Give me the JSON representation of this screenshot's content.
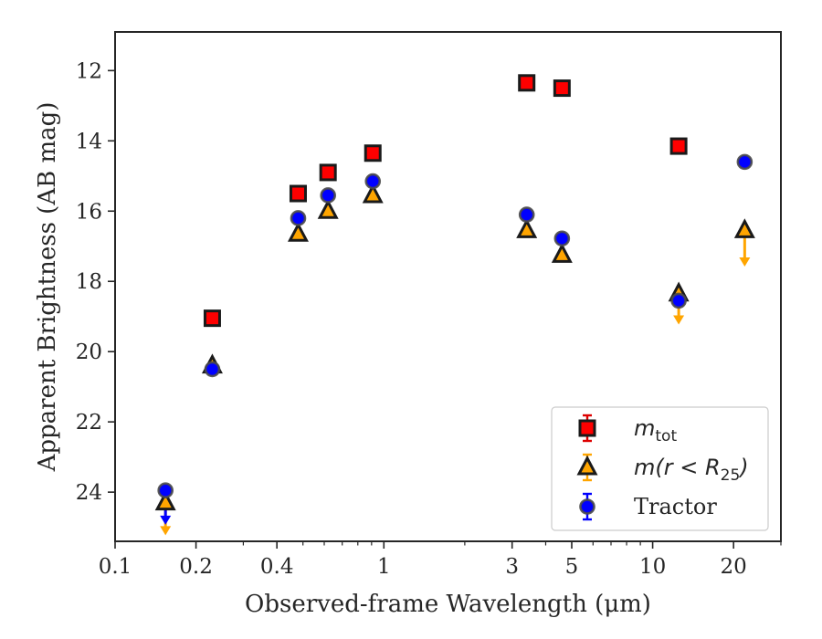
{
  "chart_data": {
    "type": "scatter",
    "xlabel": "Observed-frame Wavelength (μm)",
    "ylabel": "Apparent Brightness (AB mag)",
    "x_scale": "log",
    "xlim": [
      0.1,
      30
    ],
    "ylim": [
      25.4,
      10.9
    ],
    "y_inverted": true,
    "x_ticks": [
      {
        "value": 0.1,
        "label": "0.1"
      },
      {
        "value": 0.2,
        "label": "0.2"
      },
      {
        "value": 0.4,
        "label": "0.4"
      },
      {
        "value": 1,
        "label": "1"
      },
      {
        "value": 3,
        "label": "3"
      },
      {
        "value": 5,
        "label": "5"
      },
      {
        "value": 10,
        "label": "10"
      },
      {
        "value": 20,
        "label": "20"
      }
    ],
    "x_minor_ticks": [
      0.3,
      0.5,
      0.6,
      0.7,
      0.8,
      0.9,
      2,
      4,
      6,
      7,
      8,
      9,
      30
    ],
    "y_ticks": [
      {
        "value": 12,
        "label": "12"
      },
      {
        "value": 14,
        "label": "14"
      },
      {
        "value": 16,
        "label": "16"
      },
      {
        "value": 18,
        "label": "18"
      },
      {
        "value": 20,
        "label": "20"
      },
      {
        "value": 22,
        "label": "22"
      },
      {
        "value": 24,
        "label": "24"
      }
    ],
    "grid": false,
    "legend_position": "lower-right",
    "series": [
      {
        "name": "m_tot",
        "legend_label": {
          "base": "m",
          "sub": "tot"
        },
        "marker": "square",
        "face_color": "#ff0000",
        "edge_color": "#1a1a1a",
        "errorbar_color": "#dd0000",
        "points": [
          {
            "x": 0.23,
            "y": 19.05
          },
          {
            "x": 0.48,
            "y": 15.5
          },
          {
            "x": 0.62,
            "y": 14.9
          },
          {
            "x": 0.91,
            "y": 14.35
          },
          {
            "x": 3.4,
            "y": 12.35
          },
          {
            "x": 4.6,
            "y": 12.5
          },
          {
            "x": 12.5,
            "y": 14.15
          }
        ]
      },
      {
        "name": "m(r < R25)",
        "legend_label": {
          "base": "m(r < R",
          "sub": "25",
          "tail": ")"
        },
        "marker": "triangle",
        "face_color": "#ffa500",
        "edge_color": "#1a1a1a",
        "errorbar_color": "#ffa500",
        "points": [
          {
            "x": 0.154,
            "y": 24.3,
            "upper_limit": true,
            "limit_to": 25.15
          },
          {
            "x": 0.23,
            "y": 20.4
          },
          {
            "x": 0.48,
            "y": 16.65
          },
          {
            "x": 0.62,
            "y": 16.0
          },
          {
            "x": 0.91,
            "y": 15.55
          },
          {
            "x": 3.4,
            "y": 16.55
          },
          {
            "x": 4.6,
            "y": 17.25
          },
          {
            "x": 12.5,
            "y": 18.35,
            "upper_limit": true,
            "limit_to": 19.15
          },
          {
            "x": 22.0,
            "y": 16.55,
            "upper_limit": true,
            "limit_to": 17.5
          }
        ]
      },
      {
        "name": "Tractor",
        "legend_label": {
          "base": "Tractor"
        },
        "marker": "circle",
        "face_color": "#0000ff",
        "edge_color": "#4a4a4a",
        "errorbar_color": "#0000ff",
        "points": [
          {
            "x": 0.154,
            "y": 23.95,
            "upper_limit": true,
            "limit_to": 24.85
          },
          {
            "x": 0.23,
            "y": 20.5
          },
          {
            "x": 0.48,
            "y": 16.2
          },
          {
            "x": 0.62,
            "y": 15.55
          },
          {
            "x": 0.91,
            "y": 15.15
          },
          {
            "x": 3.4,
            "y": 16.1
          },
          {
            "x": 4.6,
            "y": 16.78
          },
          {
            "x": 12.5,
            "y": 18.55
          },
          {
            "x": 22.0,
            "y": 14.6
          }
        ]
      }
    ]
  }
}
